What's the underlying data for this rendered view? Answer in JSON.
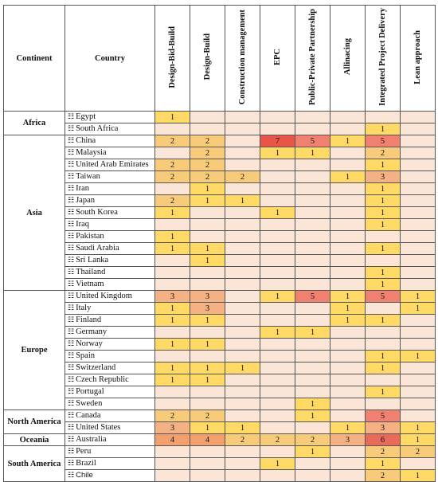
{
  "header": {
    "continent": "Continent",
    "country": "Country",
    "methods": [
      "Design-Bid-Build",
      "Design-Build",
      "Construction management",
      "EPC",
      "Public-Private Partnership",
      "Allinacing",
      "Integrated Project Delivery",
      "Lean approach"
    ]
  },
  "icons": {
    "country_icon": "map-icon"
  },
  "groups": [
    {
      "continent": "Africa",
      "rows": [
        {
          "country": "Egypt",
          "values": [
            "1",
            "",
            "",
            "",
            "",
            "",
            "",
            ""
          ]
        },
        {
          "country": "South Africa",
          "values": [
            "",
            "",
            "",
            "",
            "",
            "",
            "1",
            ""
          ]
        }
      ]
    },
    {
      "continent": "Asia",
      "rows": [
        {
          "country": "China",
          "values": [
            "2",
            "2",
            "",
            "7",
            "5",
            "1",
            "5",
            ""
          ]
        },
        {
          "country": "Malaysia",
          "values": [
            "",
            "2",
            "",
            "1",
            "1",
            "",
            "2",
            ""
          ]
        },
        {
          "country": "United Arab Emirates",
          "values": [
            "2",
            "2",
            "",
            "",
            "",
            "",
            "1",
            ""
          ]
        },
        {
          "country": "Taiwan",
          "values": [
            "2",
            "2",
            "2",
            "",
            "",
            "1",
            "3",
            ""
          ]
        },
        {
          "country": "Iran",
          "values": [
            "",
            "1",
            "",
            "",
            "",
            "",
            "1",
            ""
          ]
        },
        {
          "country": "Japan",
          "values": [
            "2",
            "1",
            "1",
            "",
            "",
            "",
            "1",
            ""
          ]
        },
        {
          "country": "South Korea",
          "values": [
            "1",
            "",
            "",
            "1",
            "",
            "",
            "1",
            ""
          ]
        },
        {
          "country": "Iraq",
          "values": [
            "",
            "",
            "",
            "",
            "",
            "",
            "1",
            ""
          ]
        },
        {
          "country": "Pakistan",
          "values": [
            "1",
            "",
            "",
            "",
            "",
            "",
            "",
            ""
          ]
        },
        {
          "country": "Saudi Arabia",
          "values": [
            "1",
            "1",
            "",
            "",
            "",
            "",
            "1",
            ""
          ]
        },
        {
          "country": "Sri Lanka",
          "values": [
            "",
            "1",
            "",
            "",
            "",
            "",
            "",
            ""
          ]
        },
        {
          "country": "Thailand",
          "values": [
            "",
            "",
            "",
            "",
            "",
            "",
            "1",
            ""
          ]
        },
        {
          "country": "Vietnam",
          "values": [
            "",
            "",
            "",
            "",
            "",
            "",
            "1",
            ""
          ]
        }
      ]
    },
    {
      "continent": "Europe",
      "rows": [
        {
          "country": "United Kingdom",
          "values": [
            "3",
            "3",
            "",
            "1",
            "5",
            "1",
            "5",
            "1"
          ]
        },
        {
          "country": "Italy",
          "values": [
            "1",
            "3",
            "",
            "",
            "",
            "1",
            "",
            "1"
          ]
        },
        {
          "country": "Finland",
          "values": [
            "1",
            "1",
            "",
            "",
            "",
            "1",
            "1",
            ""
          ]
        },
        {
          "country": "Germany",
          "values": [
            "",
            "",
            "",
            "1",
            "1",
            "",
            "",
            ""
          ]
        },
        {
          "country": "Norway",
          "values": [
            "1",
            "1",
            "",
            "",
            "",
            "",
            "",
            ""
          ]
        },
        {
          "country": "Spain",
          "values": [
            "",
            "",
            "",
            "",
            "",
            "",
            "1",
            "1"
          ]
        },
        {
          "country": "Switzerland",
          "values": [
            "1",
            "1",
            "1",
            "",
            "",
            "",
            "1",
            ""
          ]
        },
        {
          "country": "Czech Republic",
          "values": [
            "1",
            "1",
            "",
            "",
            "",
            "",
            "",
            ""
          ]
        },
        {
          "country": "Portugal",
          "values": [
            "",
            "",
            "",
            "",
            "",
            "",
            "1",
            ""
          ]
        },
        {
          "country": "Sweden",
          "values": [
            "",
            "",
            "",
            "",
            "1",
            "",
            "",
            ""
          ]
        }
      ]
    },
    {
      "continent": "North America",
      "rows": [
        {
          "country": "Canada",
          "values": [
            "2",
            "2",
            "",
            "",
            "1",
            "",
            "5",
            ""
          ]
        },
        {
          "country": "United States",
          "values": [
            "3",
            "1",
            "1",
            "",
            "",
            "1",
            "3",
            "1"
          ]
        }
      ]
    },
    {
      "continent": "Oceania",
      "rows": [
        {
          "country": "Australia",
          "values": [
            "4",
            "4",
            "2",
            "2",
            "2",
            "3",
            "6",
            "1"
          ]
        }
      ]
    },
    {
      "continent": "South America",
      "rows": [
        {
          "country": "Peru",
          "values": [
            "",
            "",
            "",
            "",
            "1",
            "",
            "2",
            "2"
          ]
        },
        {
          "country": "Brazil",
          "values": [
            "",
            "",
            "",
            "1",
            "",
            "",
            "1",
            ""
          ]
        },
        {
          "country": "Chile",
          "values": [
            "",
            "",
            "",
            "",
            "",
            "",
            "2",
            "1"
          ]
        }
      ]
    }
  ]
}
